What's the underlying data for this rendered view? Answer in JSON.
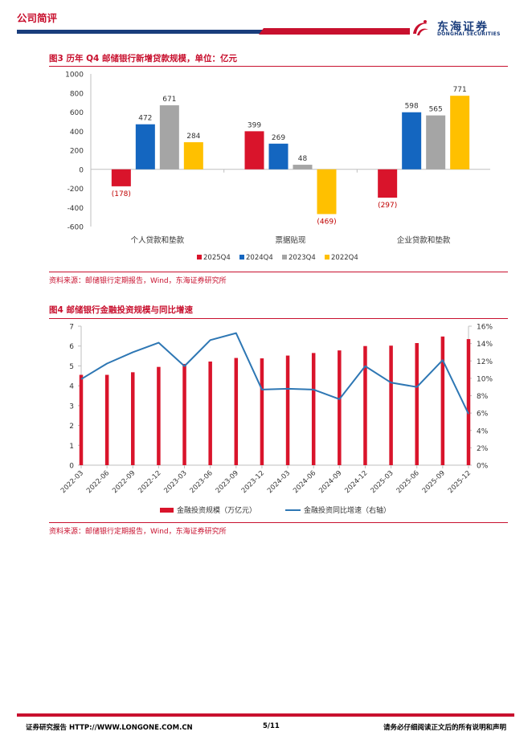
{
  "header": {
    "section_title": "公司简评",
    "logo_cn": "东海证券",
    "logo_en": "DONGHAI SECURITIES"
  },
  "colors": {
    "brand_red": "#C8102E",
    "brand_blue": "#1A3D7C",
    "s2025": "#D9142B",
    "s2024": "#1466C0",
    "s2023": "#A5A5A5",
    "s2022": "#FFC000",
    "line_blue": "#2E77B4"
  },
  "figure3": {
    "title": "图3  历年 Q4 邮储银行新增贷款规模，单位：亿元",
    "source": "资料来源：邮储银行定期报告，Wind，东海证券研究所"
  },
  "figure4": {
    "title": "图4  邮储银行金融投资规模与同比增速",
    "source": "资料来源：邮储银行定期报告，Wind，东海证券研究所"
  },
  "chart_data": [
    {
      "type": "bar",
      "title": "历年 Q4 邮储银行新增贷款规模，单位：亿元",
      "categories": [
        "个人贷款和垫款",
        "票据贴现",
        "企业贷款和垫款"
      ],
      "series": [
        {
          "name": "2025Q4",
          "values": [
            -178,
            399,
            -297
          ],
          "labels": [
            "(178)",
            "399",
            "(297)"
          ]
        },
        {
          "name": "2024Q4",
          "values": [
            472,
            269,
            598
          ],
          "labels": [
            "472",
            "269",
            "598"
          ]
        },
        {
          "name": "2023Q4",
          "values": [
            671,
            48,
            565
          ],
          "labels": [
            "671",
            "48",
            "565"
          ]
        },
        {
          "name": "2022Q4",
          "values": [
            284,
            -469,
            771
          ],
          "labels": [
            "284",
            "(469)",
            "771"
          ]
        }
      ],
      "ylim": [
        -600,
        1000
      ],
      "yticks": [
        "1000",
        "800",
        "600",
        "400",
        "200",
        "0",
        "-200",
        "-400",
        "-600"
      ],
      "legend_position": "bottom"
    },
    {
      "type": "bar+line",
      "title": "邮储银行金融投资规模与同比增速",
      "x": [
        "2022-03",
        "2022-06",
        "2022-09",
        "2022-12",
        "2023-03",
        "2023-06",
        "2023-09",
        "2023-12",
        "2024-03",
        "2024-06",
        "2024-09",
        "2024-12",
        "2025-03",
        "2025-06",
        "2025-09",
        "2025-12"
      ],
      "series": [
        {
          "name": "金融投资规模（万亿元）",
          "type": "bar",
          "axis": "left",
          "values": [
            4.55,
            4.55,
            4.68,
            4.95,
            5.1,
            5.22,
            5.4,
            5.38,
            5.52,
            5.65,
            5.78,
            6.0,
            6.02,
            6.15,
            6.48,
            6.35
          ]
        },
        {
          "name": "金融投资同比增速（右轴）",
          "type": "line",
          "axis": "right",
          "values": [
            9.9,
            11.7,
            13.0,
            14.1,
            11.4,
            14.4,
            15.2,
            8.7,
            8.8,
            8.7,
            7.6,
            11.4,
            9.5,
            9.0,
            12.1,
            5.9
          ]
        }
      ],
      "ylim_left": [
        0,
        7
      ],
      "yticks_left": [
        "7",
        "6",
        "5",
        "4",
        "3",
        "2",
        "1",
        "0"
      ],
      "ylim_right": [
        0,
        16
      ],
      "yticks_right": [
        "16%",
        "14%",
        "12%",
        "10%",
        "8%",
        "6%",
        "4%",
        "2%",
        "0%"
      ],
      "legend_position": "bottom"
    }
  ],
  "footer": {
    "left": "证券研究报告   HTTP://WWW.LONGONE.COM.CN",
    "page": "5/11",
    "right": "请务必仔细阅读正文后的所有说明和声明"
  }
}
